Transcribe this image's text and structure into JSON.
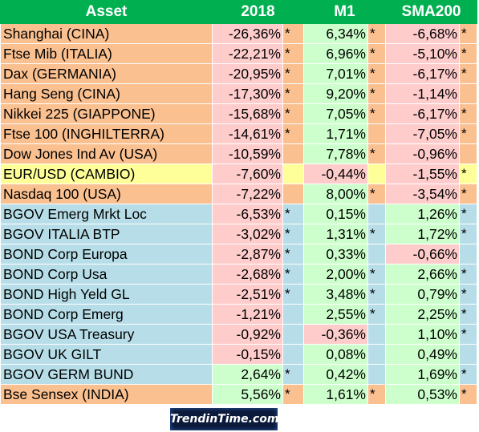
{
  "table": {
    "headers": {
      "asset": "Asset",
      "c2018": "2018",
      "m1": "M1",
      "sma200": "SMA200"
    },
    "rows": [
      {
        "asset": "Shanghai (CINA)",
        "group": "equity",
        "y2018": "-26,36%",
        "s2018": "*",
        "m1": "6,34%",
        "sm1": "*",
        "sma": "-6,68%",
        "ssma": "*"
      },
      {
        "asset": "Ftse Mib (ITALIA)",
        "group": "equity",
        "y2018": "-22,21%",
        "s2018": "*",
        "m1": "6,96%",
        "sm1": "*",
        "sma": "-5,10%",
        "ssma": "*"
      },
      {
        "asset": "Dax (GERMANIA)",
        "group": "equity",
        "y2018": "-20,95%",
        "s2018": "*",
        "m1": "7,01%",
        "sm1": "*",
        "sma": "-6,17%",
        "ssma": "*"
      },
      {
        "asset": "Hang Seng (CINA)",
        "group": "equity",
        "y2018": "-17,30%",
        "s2018": "*",
        "m1": "9,20%",
        "sm1": "*",
        "sma": "-1,14%",
        "ssma": ""
      },
      {
        "asset": "Nikkei 225 (GIAPPONE)",
        "group": "equity",
        "y2018": "-15,68%",
        "s2018": "*",
        "m1": "7,05%",
        "sm1": "*",
        "sma": "-6,17%",
        "ssma": "*"
      },
      {
        "asset": "Ftse 100 (INGHILTERRA)",
        "group": "equity",
        "y2018": "-14,61%",
        "s2018": "*",
        "m1": "1,71%",
        "sm1": "",
        "sma": "-7,05%",
        "ssma": "*"
      },
      {
        "asset": "Dow Jones Ind Av (USA)",
        "group": "equity",
        "y2018": "-10,59%",
        "s2018": "",
        "m1": "7,78%",
        "sm1": "*",
        "sma": "-0,96%",
        "ssma": ""
      },
      {
        "asset": "EUR/USD (CAMBIO)",
        "group": "fx",
        "y2018": "-7,60%",
        "s2018": "",
        "m1": "-0,44%",
        "sm1": "",
        "sma": "-1,55%",
        "ssma": "*"
      },
      {
        "asset": "Nasdaq 100 (USA)",
        "group": "equity",
        "y2018": "-7,22%",
        "s2018": "",
        "m1": "8,00%",
        "sm1": "*",
        "sma": "-3,54%",
        "ssma": "*"
      },
      {
        "asset": "BGOV Emerg Mrkt Loc",
        "group": "bond",
        "y2018": "-6,53%",
        "s2018": "*",
        "m1": "0,15%",
        "sm1": "",
        "sma": "1,26%",
        "ssma": "*"
      },
      {
        "asset": "BGOV ITALIA BTP",
        "group": "bond",
        "y2018": "-3,02%",
        "s2018": "*",
        "m1": "1,31%",
        "sm1": "*",
        "sma": "1,72%",
        "ssma": "*"
      },
      {
        "asset": "BOND Corp Europa",
        "group": "bond",
        "y2018": "-2,87%",
        "s2018": "*",
        "m1": "0,33%",
        "sm1": "",
        "sma": "-0,66%",
        "ssma": ""
      },
      {
        "asset": "BOND Corp Usa",
        "group": "bond",
        "y2018": "-2,68%",
        "s2018": "*",
        "m1": "2,00%",
        "sm1": "*",
        "sma": "2,66%",
        "ssma": "*"
      },
      {
        "asset": "BOND High Yeld GL",
        "group": "bond",
        "y2018": "-2,51%",
        "s2018": "*",
        "m1": "3,48%",
        "sm1": "*",
        "sma": "0,79%",
        "ssma": "*"
      },
      {
        "asset": "BOND Corp Emerg",
        "group": "bond",
        "y2018": "-1,21%",
        "s2018": "",
        "m1": "2,55%",
        "sm1": "*",
        "sma": "2,25%",
        "ssma": "*"
      },
      {
        "asset": "BGOV USA Treasury",
        "group": "bond",
        "y2018": "-0,92%",
        "s2018": "",
        "m1": "-0,36%",
        "sm1": "",
        "sma": "1,10%",
        "ssma": "*"
      },
      {
        "asset": "BGOV UK GILT",
        "group": "bond",
        "y2018": "-0,15%",
        "s2018": "",
        "m1": "0,08%",
        "sm1": "",
        "sma": "0,49%",
        "ssma": ""
      },
      {
        "asset": "BGOV GERM BUND",
        "group": "bond",
        "y2018": "2,64%",
        "s2018": "*",
        "m1": "0,42%",
        "sm1": "",
        "sma": "1,69%",
        "ssma": "*"
      },
      {
        "asset": "Bse Sensex (INDIA)",
        "group": "equity",
        "y2018": "5,56%",
        "s2018": "*",
        "m1": "1,61%",
        "sm1": "*",
        "sma": "0,53%",
        "ssma": "*"
      }
    ]
  },
  "logo": {
    "text": "TrendinTime.com"
  },
  "colors": {
    "header_bg": "#00b050",
    "equity_bg": "#fac090",
    "fx_bg": "#ffff99",
    "bond_bg": "#b7dee8",
    "positive_bg": "#ccffcc",
    "negative_bg": "#ffcccc"
  }
}
